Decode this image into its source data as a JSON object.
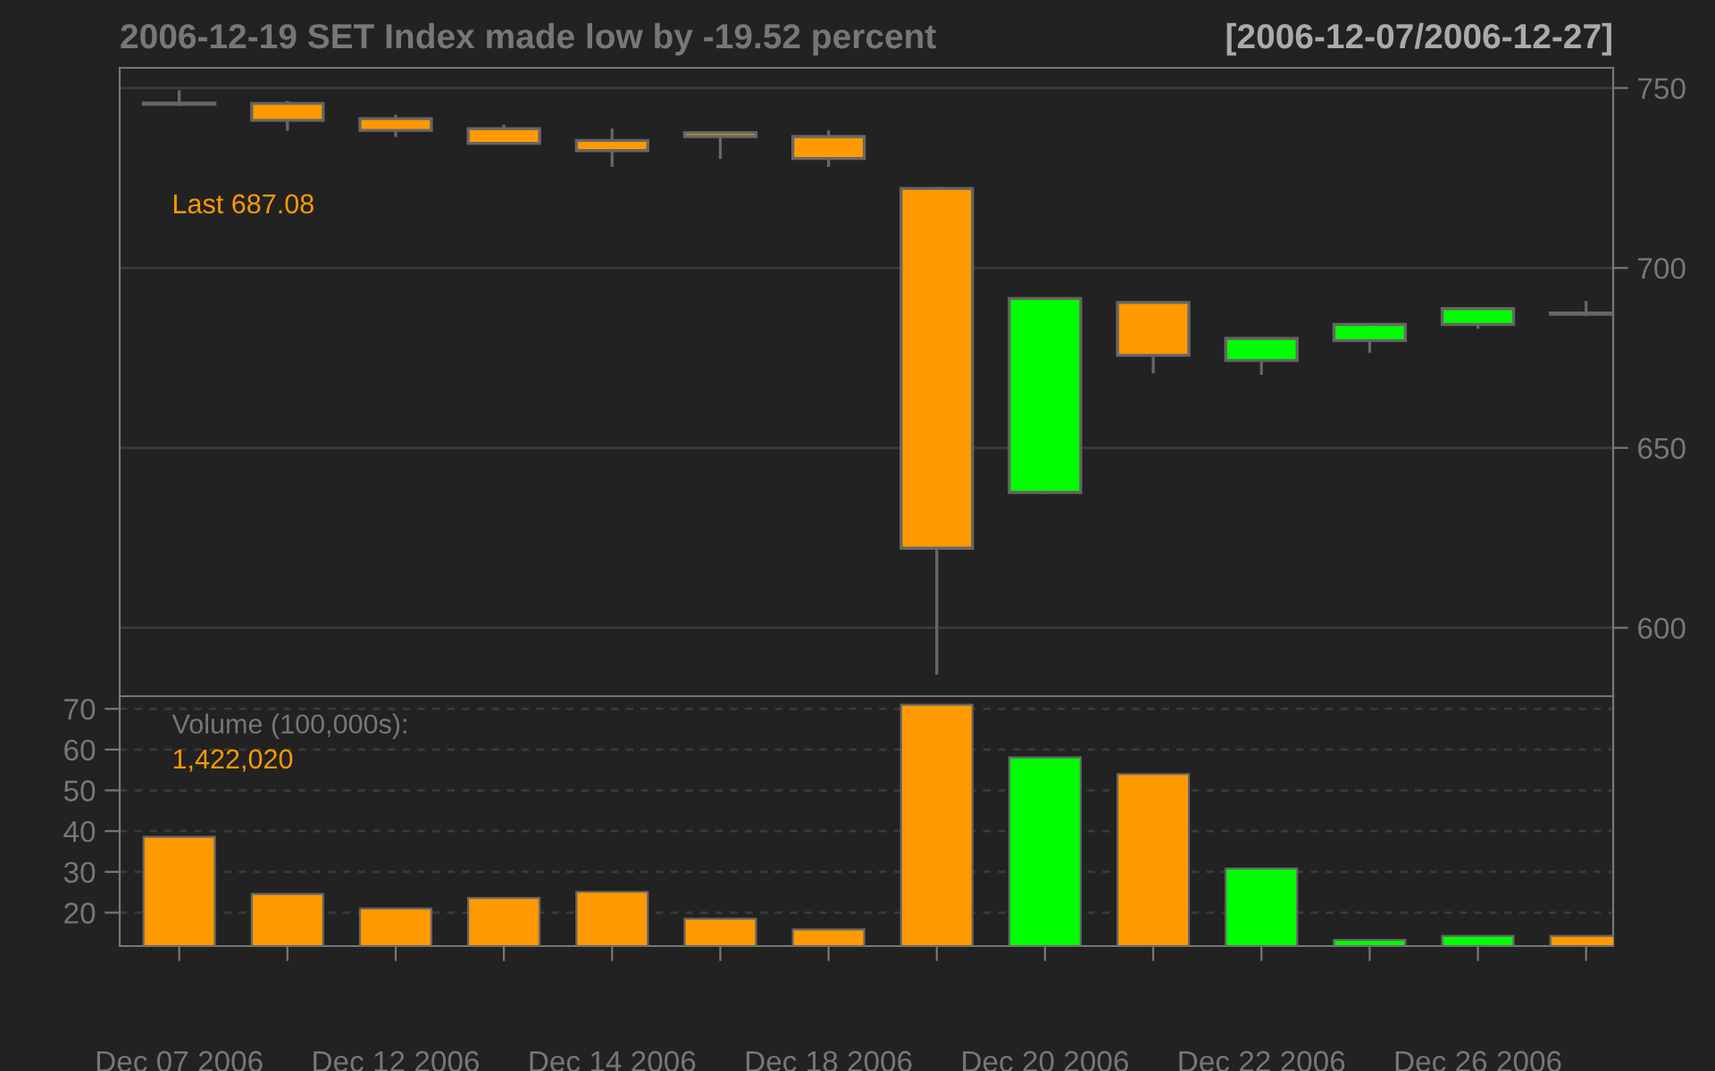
{
  "chart_data": [
    {
      "type": "candlestick",
      "title": "2006-12-19 SET Index made low by -19.52 percent",
      "subtitle": "[2006-12-07/2006-12-27]",
      "ohlc": [
        [
          745.6,
          749,
          745.4,
          745.5
        ],
        [
          745.7,
          746,
          738.5,
          741
        ],
        [
          741.5,
          742.2,
          736.8,
          738.2
        ],
        [
          738.7,
          739.4,
          734.6,
          734.6
        ],
        [
          735.4,
          738.3,
          728.5,
          732.6
        ],
        [
          737.6,
          737.6,
          730.7,
          736.5
        ],
        [
          736.5,
          737.8,
          728.5,
          730.4
        ],
        [
          722.1,
          722.1,
          587.4,
          622.1
        ],
        [
          637.6,
          691.5,
          637.6,
          691.5
        ],
        [
          690.4,
          690.4,
          671.1,
          675.7
        ],
        [
          674.3,
          680.4,
          670.7,
          680.4
        ],
        [
          679.8,
          684.3,
          676.8,
          684.3
        ],
        [
          684.3,
          688.7,
          683.5,
          688.7
        ],
        [
          687.5,
          690.4,
          687,
          687.1
        ]
      ],
      "colors": [
        "#666666",
        "#ff9900",
        "#ff9900",
        "#ff9900",
        "#ff9900",
        "#ff9900",
        "#ff9900",
        "#ff9900",
        "#00ff00",
        "#ff9900",
        "#00ff00",
        "#00ff00",
        "#00ff00",
        "#666666"
      ],
      "ylim": [
        581,
        755.6
      ],
      "yticks": [
        600,
        650,
        700,
        750
      ],
      "grid": "y",
      "tick_labels": "y",
      "annotations": [
        "Last 687.08"
      ]
    },
    {
      "type": "bar",
      "categories": [
        "Dec 07 2006",
        null,
        "Dec 12 2006",
        null,
        "Dec 14 2006",
        null,
        "Dec 18 2006",
        null,
        "Dec 20 2006",
        null,
        "Dec 22 2006",
        null,
        "Dec 26 2006",
        null
      ],
      "values": [
        38.6,
        24.6,
        21,
        23.6,
        25.1,
        18.5,
        15.9,
        71,
        58.1,
        54,
        30.8,
        13.3,
        14.3,
        14.3
      ],
      "colors": [
        "#ff9900",
        "#ff9900",
        "#ff9900",
        "#ff9900",
        "#ff9900",
        "#ff9900",
        "#ff9900",
        "#ff9900",
        "#00ff00",
        "#ff9900",
        "#00ff00",
        "#00ff00",
        "#00ff00",
        "#ff9900"
      ],
      "ylim": [
        11.8,
        73.1
      ],
      "yticks": [
        20,
        30,
        40,
        50,
        60,
        70
      ],
      "grid": "y",
      "annotations": [
        "Volume (100,000s):",
        "1,422,020"
      ]
    }
  ]
}
